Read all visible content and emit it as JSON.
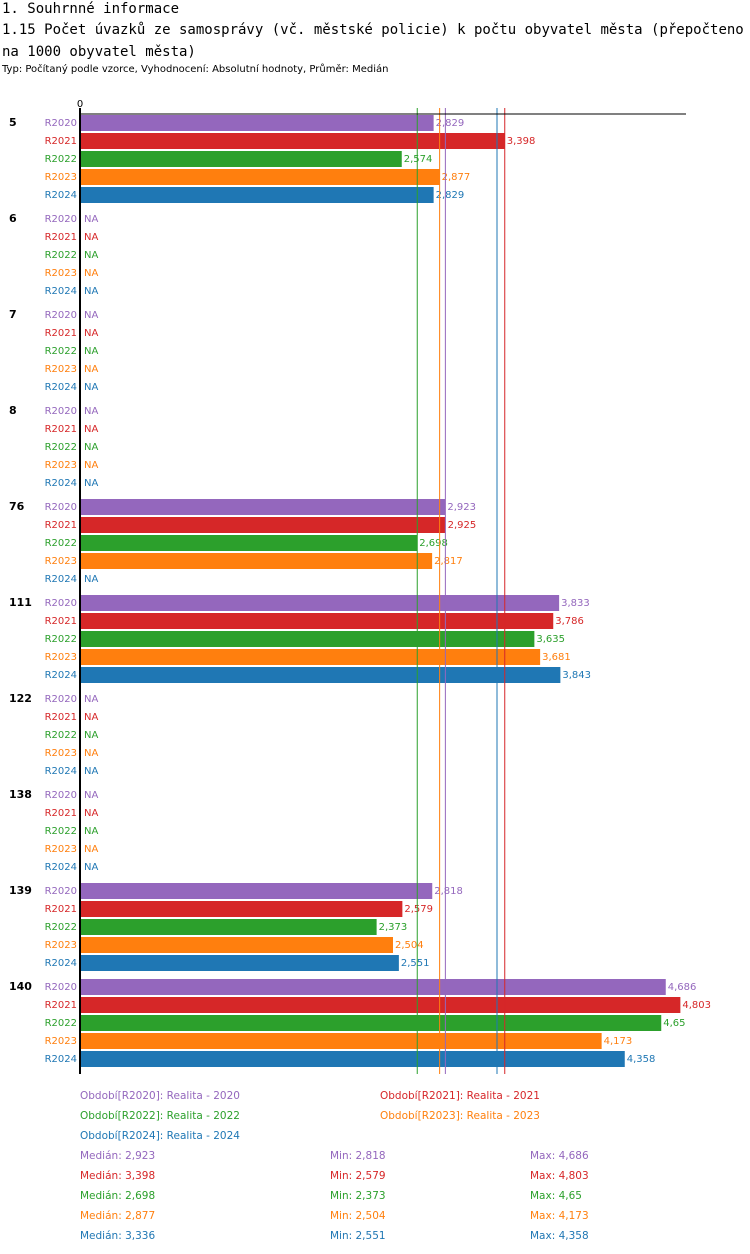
{
  "header": {
    "section": "1. Souhrnné informace",
    "title": "1.15 Počet úvazků ze samosprávy (vč. městské policie) k počtu obyvatel města (přepočteno na 1000 obyvatel města)",
    "subtitle": "Typ: Počítaný podle vzorce, Vyhodnocení: Absolutní hodnoty, Průměr: Medián"
  },
  "chart_data": {
    "type": "bar",
    "orientation": "horizontal",
    "axis_zero_label": "0",
    "xlim": [
      0,
      5.3
    ],
    "categories": [
      "5",
      "6",
      "7",
      "8",
      "76",
      "111",
      "122",
      "138",
      "139",
      "140"
    ],
    "series": [
      {
        "key": "R2020",
        "label": "Období[R2020]: Realita - 2020",
        "color": "#9467bd",
        "values": [
          2.829,
          null,
          null,
          null,
          2.923,
          3.833,
          null,
          null,
          2.818,
          4.686
        ],
        "labels": [
          "2,829",
          "NA",
          "NA",
          "NA",
          "2,923",
          "3,833",
          "NA",
          "NA",
          "2,818",
          "4,686"
        ],
        "median": 2.923,
        "median_text": "Medián: 2,923",
        "min_text": "Min: 2,818",
        "max_text": "Max: 4,686"
      },
      {
        "key": "R2021",
        "label": "Období[R2021]: Realita - 2021",
        "color": "#d62728",
        "values": [
          3.398,
          null,
          null,
          null,
          2.925,
          3.786,
          null,
          null,
          2.579,
          4.803
        ],
        "labels": [
          "3,398",
          "NA",
          "NA",
          "NA",
          "2,925",
          "3,786",
          "NA",
          "NA",
          "2,579",
          "4,803"
        ],
        "median": 3.398,
        "median_text": "Medián: 3,398",
        "min_text": "Min: 2,579",
        "max_text": "Max: 4,803"
      },
      {
        "key": "R2022",
        "label": "Období[R2022]: Realita - 2022",
        "color": "#2ca02c",
        "values": [
          2.574,
          null,
          null,
          null,
          2.698,
          3.635,
          null,
          null,
          2.373,
          4.65
        ],
        "labels": [
          "2,574",
          "NA",
          "NA",
          "NA",
          "2,698",
          "3,635",
          "NA",
          "NA",
          "2,373",
          "4,65"
        ],
        "median": 2.698,
        "median_text": "Medián: 2,698",
        "min_text": "Min: 2,373",
        "max_text": "Max: 4,65"
      },
      {
        "key": "R2023",
        "label": "Období[R2023]: Realita - 2023",
        "color": "#ff7f0e",
        "values": [
          2.877,
          null,
          null,
          null,
          2.817,
          3.681,
          null,
          null,
          2.504,
          4.173
        ],
        "labels": [
          "2,877",
          "NA",
          "NA",
          "NA",
          "2,817",
          "3,681",
          "NA",
          "NA",
          "2,504",
          "4,173"
        ],
        "median": 2.877,
        "median_text": "Medián: 2,877",
        "min_text": "Min: 2,504",
        "max_text": "Max: 4,173"
      },
      {
        "key": "R2024",
        "label": "Období[R2024]: Realita - 2024",
        "color": "#1f77b4",
        "values": [
          2.829,
          null,
          null,
          null,
          null,
          3.843,
          null,
          null,
          2.551,
          4.358
        ],
        "labels": [
          "2,829",
          "NA",
          "NA",
          "NA",
          "NA",
          "3,843",
          "NA",
          "NA",
          "2,551",
          "4,358"
        ],
        "median": 3.336,
        "median_text": "Medián: 3,336",
        "min_text": "Min: 2,551",
        "max_text": "Max: 4,358"
      }
    ]
  }
}
